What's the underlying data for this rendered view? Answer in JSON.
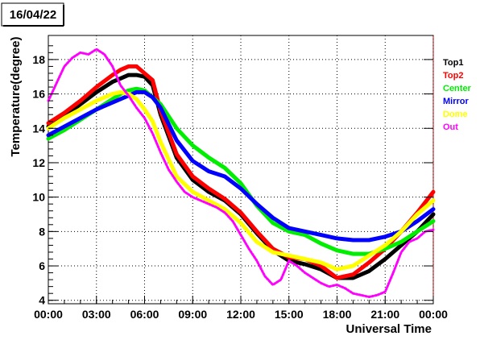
{
  "chart_data": {
    "type": "line",
    "title": "16/04/22",
    "xlabel": "Universal Time",
    "ylabel": "Temperature(degree)",
    "x_unit": "hours UT",
    "xlim": [
      0,
      24
    ],
    "ylim": [
      3.8,
      19.4
    ],
    "x_ticks": [
      {
        "x": 0,
        "label": "00:00"
      },
      {
        "x": 3,
        "label": "03:00"
      },
      {
        "x": 6,
        "label": "06:00"
      },
      {
        "x": 9,
        "label": "09:00"
      },
      {
        "x": 12,
        "label": "12:00"
      },
      {
        "x": 15,
        "label": "15:00"
      },
      {
        "x": 18,
        "label": "18:00"
      },
      {
        "x": 21,
        "label": "21:00"
      },
      {
        "x": 24,
        "label": "00:00"
      }
    ],
    "y_ticks": [
      {
        "y": 4,
        "label": "4"
      },
      {
        "y": 6,
        "label": "6"
      },
      {
        "y": 8,
        "label": "8"
      },
      {
        "y": 10,
        "label": "10"
      },
      {
        "y": 12,
        "label": "12"
      },
      {
        "y": 14,
        "label": "14"
      },
      {
        "y": 16,
        "label": "16"
      },
      {
        "y": 18,
        "label": "18"
      }
    ],
    "grid": true,
    "legend_position": "right",
    "series": [
      {
        "name": "Top1",
        "color": "#000000",
        "x": [
          0,
          1,
          2,
          3,
          4,
          4.5,
          5,
          5.5,
          6,
          6.5,
          7,
          8,
          9,
          10,
          11,
          12,
          13,
          14,
          15,
          16,
          17,
          18,
          19,
          20,
          21,
          22,
          23,
          24
        ],
        "y": [
          14.1,
          14.7,
          15.4,
          16.1,
          16.7,
          16.9,
          17.1,
          17.1,
          17.0,
          16.5,
          14.8,
          12.3,
          11.0,
          10.3,
          9.8,
          9.0,
          7.9,
          6.9,
          6.3,
          6.1,
          5.8,
          5.3,
          5.3,
          5.7,
          6.4,
          7.2,
          8.0,
          9.0
        ]
      },
      {
        "name": "Top2",
        "color": "#ff0000",
        "x": [
          0,
          1,
          2,
          3,
          4,
          4.5,
          5,
          5.5,
          6,
          6.5,
          7,
          8,
          9,
          10,
          11,
          12,
          13,
          14,
          15,
          16,
          17,
          18,
          19,
          20,
          21,
          22,
          23,
          24
        ],
        "y": [
          14.3,
          14.9,
          15.6,
          16.4,
          17.1,
          17.4,
          17.6,
          17.6,
          17.2,
          16.8,
          15.0,
          12.5,
          11.2,
          10.5,
          9.9,
          9.1,
          8.0,
          7.0,
          6.5,
          6.4,
          6.0,
          5.3,
          5.5,
          6.2,
          7.0,
          8.0,
          9.1,
          10.3
        ]
      },
      {
        "name": "Center",
        "color": "#00ee00",
        "x": [
          0,
          1,
          2,
          3,
          4,
          4.5,
          5,
          5.5,
          6,
          6.5,
          7,
          8,
          9,
          10,
          11,
          12,
          13,
          14,
          15,
          16,
          17,
          18,
          19,
          20,
          21,
          22,
          23,
          24
        ],
        "y": [
          13.4,
          13.9,
          14.5,
          15.1,
          15.7,
          16.0,
          16.2,
          16.3,
          16.2,
          15.8,
          15.4,
          14.0,
          13.0,
          12.3,
          11.7,
          10.8,
          9.5,
          8.5,
          8.0,
          7.8,
          7.3,
          6.9,
          6.7,
          6.7,
          7.0,
          7.4,
          8.0,
          8.6
        ]
      },
      {
        "name": "Mirror",
        "color": "#0000ff",
        "x": [
          0,
          1,
          2,
          3,
          4,
          4.5,
          5,
          5.5,
          6,
          6.5,
          7,
          8,
          9,
          10,
          11,
          12,
          13,
          14,
          15,
          16,
          17,
          18,
          19,
          20,
          21,
          22,
          23,
          24
        ],
        "y": [
          13.6,
          14.1,
          14.6,
          15.1,
          15.5,
          15.7,
          15.9,
          16.1,
          16.1,
          15.8,
          15.2,
          13.3,
          12.1,
          11.5,
          11.2,
          10.5,
          9.6,
          8.8,
          8.2,
          8.0,
          7.8,
          7.6,
          7.5,
          7.5,
          7.7,
          8.0,
          8.6,
          9.3
        ]
      },
      {
        "name": "Dome",
        "color": "#ffff00",
        "x": [
          0,
          1,
          2,
          3,
          4,
          4.5,
          5,
          5.5,
          6,
          6.5,
          7,
          8,
          9,
          10,
          11,
          12,
          13,
          14,
          15,
          16,
          17,
          18,
          19,
          20,
          21,
          22,
          23,
          24
        ],
        "y": [
          14.0,
          14.6,
          15.1,
          15.6,
          16.0,
          16.1,
          16.0,
          15.7,
          15.1,
          14.4,
          13.2,
          11.2,
          10.3,
          9.8,
          9.3,
          8.5,
          7.4,
          6.8,
          6.6,
          6.4,
          6.2,
          5.8,
          6.0,
          6.6,
          7.2,
          8.0,
          9.0,
          9.8
        ]
      },
      {
        "name": "Out",
        "color": "#ff00ff",
        "x": [
          0,
          0.3,
          0.7,
          1,
          1.5,
          2,
          2.5,
          3,
          3.5,
          4,
          4.5,
          5,
          5.5,
          6,
          6.5,
          7,
          7.5,
          8,
          8.5,
          9,
          9.5,
          10,
          10.5,
          11,
          11.5,
          12,
          12.5,
          13,
          13.5,
          14,
          14.5,
          15,
          15.5,
          16,
          16.5,
          17,
          17.5,
          18,
          18.5,
          19,
          19.5,
          20,
          20.5,
          21,
          21.5,
          22,
          22.5,
          23,
          23.5,
          24
        ],
        "y": [
          15.6,
          16.2,
          17.0,
          17.6,
          18.1,
          18.4,
          18.3,
          18.6,
          18.3,
          17.6,
          16.5,
          15.9,
          15.2,
          14.6,
          13.7,
          12.6,
          11.6,
          10.9,
          10.3,
          10.0,
          9.8,
          9.6,
          9.4,
          9.1,
          8.6,
          7.8,
          7.0,
          6.3,
          5.4,
          4.9,
          5.2,
          6.3,
          6.0,
          5.6,
          5.3,
          5.0,
          4.8,
          4.9,
          4.7,
          4.4,
          4.3,
          4.2,
          4.3,
          4.5,
          5.6,
          6.8,
          7.4,
          7.6,
          8.0,
          8.1
        ]
      }
    ]
  }
}
